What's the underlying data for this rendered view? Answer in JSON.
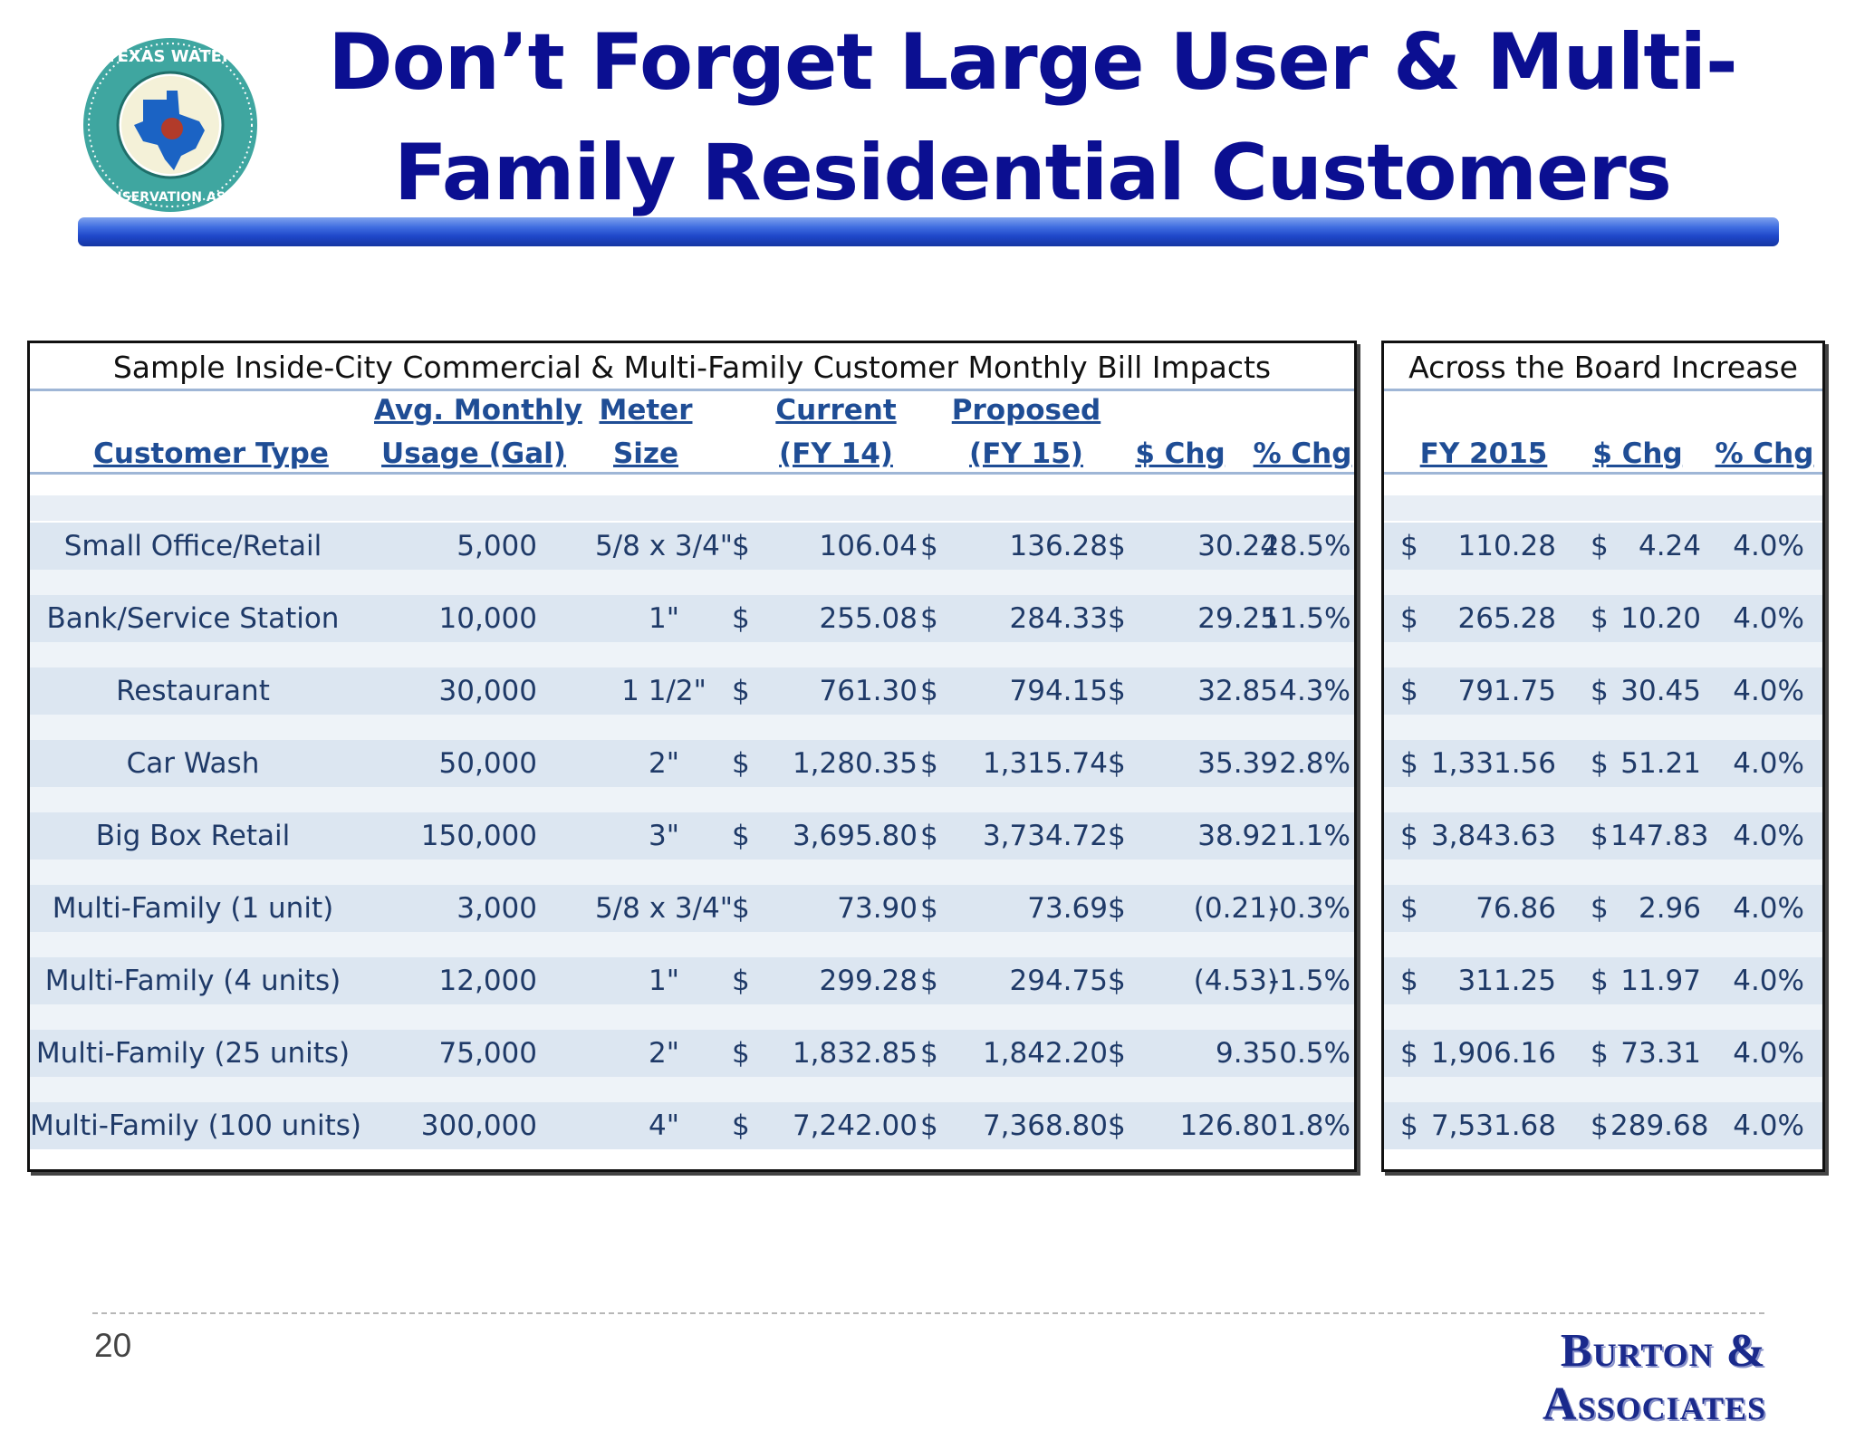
{
  "slide": {
    "title_line1": "Don’t Forget Large User & Multi-",
    "title_line2": "Family Residential Customers",
    "page_number": "20",
    "brand": "Burton & Associates",
    "logo_text": "TEXAS WATER CONSERVATION ASSN.",
    "logo_icon": "texas-water-conservation-seal-icon"
  },
  "left_table": {
    "title": "Sample Inside-City Commercial & Multi-Family Customer Monthly Bill Impacts",
    "headers": {
      "customer_type": "Customer Type",
      "usage_1": "Avg. Monthly",
      "usage_2": "Usage (Gal)",
      "meter_1": "Meter",
      "meter_2": "Size",
      "current_1": "Current",
      "current_2": "(FY 14)",
      "proposed_1": "Proposed",
      "proposed_2": "(FY 15)",
      "dchg": "$ Chg",
      "pchg": "% Chg"
    },
    "currency_symbol": "$",
    "rows": [
      {
        "type": "Small Office/Retail",
        "usage": "5,000",
        "meter": "5/8 x 3/4\"",
        "current": "106.04",
        "proposed": "136.28",
        "dchg": "30.24",
        "pchg": "28.5%"
      },
      {
        "type": "Bank/Service Station",
        "usage": "10,000",
        "meter": "1\"",
        "current": "255.08",
        "proposed": "284.33",
        "dchg": "29.25",
        "pchg": "11.5%"
      },
      {
        "type": "Restaurant",
        "usage": "30,000",
        "meter": "1 1/2\"",
        "current": "761.30",
        "proposed": "794.15",
        "dchg": "32.85",
        "pchg": "4.3%"
      },
      {
        "type": "Car Wash",
        "usage": "50,000",
        "meter": "2\"",
        "current": "1,280.35",
        "proposed": "1,315.74",
        "dchg": "35.39",
        "pchg": "2.8%"
      },
      {
        "type": "Big Box Retail",
        "usage": "150,000",
        "meter": "3\"",
        "current": "3,695.80",
        "proposed": "3,734.72",
        "dchg": "38.92",
        "pchg": "1.1%"
      },
      {
        "type": "Multi-Family (1 unit)",
        "usage": "3,000",
        "meter": "5/8 x 3/4\"",
        "current": "73.90",
        "proposed": "73.69",
        "dchg": "(0.21)",
        "pchg": "-0.3%"
      },
      {
        "type": "Multi-Family (4 units)",
        "usage": "12,000",
        "meter": "1\"",
        "current": "299.28",
        "proposed": "294.75",
        "dchg": "(4.53)",
        "pchg": "-1.5%"
      },
      {
        "type": "Multi-Family (25 units)",
        "usage": "75,000",
        "meter": "2\"",
        "current": "1,832.85",
        "proposed": "1,842.20",
        "dchg": "9.35",
        "pchg": "0.5%"
      },
      {
        "type": "Multi-Family (100 units)",
        "usage": "300,000",
        "meter": "4\"",
        "current": "7,242.00",
        "proposed": "7,368.80",
        "dchg": "126.80",
        "pchg": "1.8%"
      }
    ]
  },
  "right_table": {
    "title": "Across the Board Increase",
    "headers": {
      "fy": "FY 2015",
      "dchg": "$ Chg",
      "pchg": "% Chg"
    },
    "currency_symbol": "$",
    "rows": [
      {
        "fy": "110.28",
        "dchg": "4.24",
        "pchg": "4.0%"
      },
      {
        "fy": "265.28",
        "dchg": "10.20",
        "pchg": "4.0%"
      },
      {
        "fy": "791.75",
        "dchg": "30.45",
        "pchg": "4.0%"
      },
      {
        "fy": "1,331.56",
        "dchg": "51.21",
        "pchg": "4.0%"
      },
      {
        "fy": "3,843.63",
        "dchg": "147.83",
        "pchg": "4.0%"
      },
      {
        "fy": "76.86",
        "dchg": "2.96",
        "pchg": "4.0%"
      },
      {
        "fy": "311.25",
        "dchg": "11.97",
        "pchg": "4.0%"
      },
      {
        "fy": "1,906.16",
        "dchg": "73.31",
        "pchg": "4.0%"
      },
      {
        "fy": "7,531.68",
        "dchg": "289.68",
        "pchg": "4.0%"
      }
    ]
  },
  "colors": {
    "title": "#0b0f91",
    "header": "#1f4d95",
    "cell_text": "#1f3a68",
    "row_band": "#dce6f1",
    "title_bar": "#1f47c9"
  }
}
